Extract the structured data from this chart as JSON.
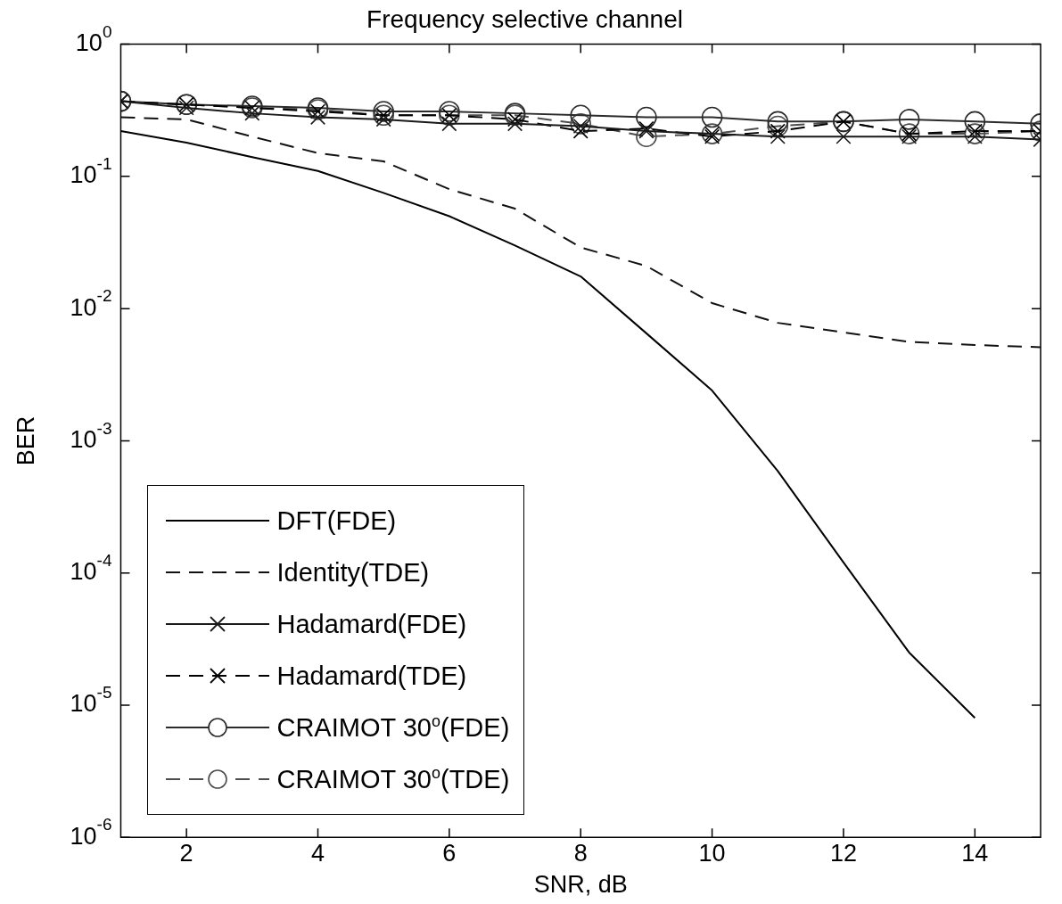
{
  "chart_data": {
    "type": "line",
    "title": "Frequency selective channel",
    "xlabel": "SNR, dB",
    "ylabel": "BER",
    "x": [
      1,
      2,
      3,
      4,
      5,
      6,
      7,
      8,
      9,
      10,
      11,
      12,
      13,
      14,
      15
    ],
    "xlim": [
      1,
      15
    ],
    "xticks": [
      2,
      4,
      6,
      8,
      10,
      12,
      14
    ],
    "ylim": [
      1e-06,
      1
    ],
    "log": "y",
    "yticks": [
      {
        "value": 1e-06,
        "label": "10$^{-6}$"
      },
      {
        "value": 1e-05,
        "label": "10$^{-5}$"
      },
      {
        "value": 0.0001,
        "label": "10$^{-4}$"
      },
      {
        "value": 0.001,
        "label": "10$^{-3}$"
      },
      {
        "value": 0.01,
        "label": "10$^{-2}$"
      },
      {
        "value": 0.1,
        "label": "10$^{-1}$"
      },
      {
        "value": 1,
        "label": "10$^{0}$"
      }
    ],
    "grid": false,
    "legend": "bottom left",
    "series": [
      {
        "name": "DFT(FDE)",
        "color": "#000000",
        "line_style": "solid",
        "marker": "none",
        "x": [
          1,
          2,
          3,
          4,
          5,
          6,
          7,
          8,
          9,
          10,
          11,
          12,
          13,
          14
        ],
        "values": [
          0.22,
          0.18,
          0.14,
          0.11,
          0.075,
          0.05,
          0.03,
          0.0175,
          0.0065,
          0.0024,
          0.00059,
          0.00012,
          2.5e-05,
          8e-06
        ]
      },
      {
        "name": "Identity(TDE)",
        "color": "#111111",
        "line_style": "dashed",
        "marker": "none",
        "values": [
          0.28,
          0.27,
          0.2,
          0.15,
          0.13,
          0.08,
          0.057,
          0.029,
          0.021,
          0.011,
          0.0078,
          0.0066,
          0.0056,
          0.0053,
          0.0051
        ]
      },
      {
        "name": "Hadamard(FDE)",
        "color": "#1a1a1a",
        "line_style": "solid",
        "marker": "cross",
        "values": [
          0.37,
          0.33,
          0.3,
          0.28,
          0.27,
          0.25,
          0.25,
          0.24,
          0.22,
          0.21,
          0.2,
          0.2,
          0.2,
          0.2,
          0.19
        ]
      },
      {
        "name": "Hadamard(TDE)",
        "color": "#000000",
        "line_style": "dashed",
        "marker": "cross",
        "values": [
          0.37,
          0.35,
          0.33,
          0.31,
          0.29,
          0.29,
          0.27,
          0.22,
          0.23,
          0.2,
          0.22,
          0.26,
          0.21,
          0.22,
          0.22
        ]
      },
      {
        "name": "CRAIMOT 30$^{o}$(FDE)",
        "color": "#2b2b2b",
        "line_style": "solid",
        "marker": "circle",
        "values": [
          0.37,
          0.35,
          0.34,
          0.33,
          0.31,
          0.31,
          0.3,
          0.29,
          0.28,
          0.28,
          0.26,
          0.26,
          0.27,
          0.26,
          0.25
        ]
      },
      {
        "name": "CRAIMOT 30$^{o}$(TDE)",
        "color": "#4d4d4d",
        "line_style": "dashed",
        "marker": "circle",
        "values": [
          0.37,
          0.35,
          0.33,
          0.32,
          0.29,
          0.29,
          0.29,
          0.25,
          0.2,
          0.21,
          0.24,
          0.26,
          0.21,
          0.21,
          0.22
        ]
      }
    ]
  }
}
